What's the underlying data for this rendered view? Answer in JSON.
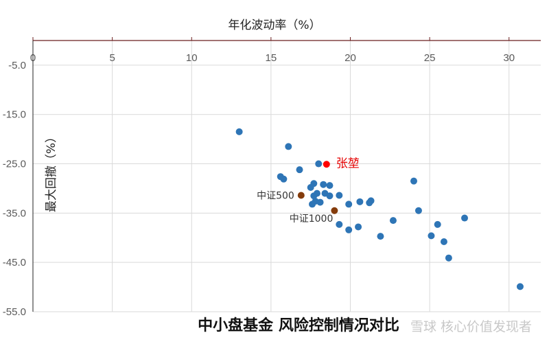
{
  "chart_data": {
    "type": "scatter",
    "title": "中小盘基金  风险控制情况对比",
    "xlabel": "年化波动率（%）",
    "ylabel": "最大回撤（%）",
    "xlim": [
      0,
      32
    ],
    "ylim": [
      -55,
      0
    ],
    "x_axis_position": "top",
    "x_ticks": [
      0,
      5,
      10,
      15,
      20,
      25,
      30
    ],
    "y_ticks": [
      -5.0,
      -15.0,
      -25.0,
      -35.0,
      -45.0,
      -55.0
    ],
    "grid": true,
    "colors": {
      "fund": "#2e75b6",
      "index": "#843c0c",
      "highlight": "#ff0000",
      "axis": "#6b1f1f",
      "grid": "#d9d9d9"
    },
    "series": [
      {
        "role": "fund",
        "points": [
          {
            "x": 13.0,
            "y": -18.5
          },
          {
            "x": 16.1,
            "y": -21.5
          },
          {
            "x": 18.0,
            "y": -25.0
          },
          {
            "x": 16.8,
            "y": -26.2
          },
          {
            "x": 15.6,
            "y": -27.6
          },
          {
            "x": 15.8,
            "y": -28.1
          },
          {
            "x": 17.7,
            "y": -29.0
          },
          {
            "x": 18.3,
            "y": -29.2
          },
          {
            "x": 18.7,
            "y": -29.4
          },
          {
            "x": 17.5,
            "y": -29.8
          },
          {
            "x": 17.9,
            "y": -31.0
          },
          {
            "x": 18.4,
            "y": -31.0
          },
          {
            "x": 17.7,
            "y": -31.5
          },
          {
            "x": 18.7,
            "y": -31.5
          },
          {
            "x": 19.3,
            "y": -31.4
          },
          {
            "x": 17.8,
            "y": -32.6
          },
          {
            "x": 18.1,
            "y": -32.8
          },
          {
            "x": 17.6,
            "y": -33.2
          },
          {
            "x": 20.6,
            "y": -32.7
          },
          {
            "x": 21.3,
            "y": -32.5
          },
          {
            "x": 21.2,
            "y": -32.9
          },
          {
            "x": 19.9,
            "y": -33.2
          },
          {
            "x": 24.0,
            "y": -28.5
          },
          {
            "x": 24.3,
            "y": -34.5
          },
          {
            "x": 22.7,
            "y": -36.5
          },
          {
            "x": 27.2,
            "y": -36.0
          },
          {
            "x": 25.5,
            "y": -37.3
          },
          {
            "x": 19.3,
            "y": -37.3
          },
          {
            "x": 20.5,
            "y": -37.8
          },
          {
            "x": 19.9,
            "y": -38.4
          },
          {
            "x": 21.9,
            "y": -39.7
          },
          {
            "x": 25.1,
            "y": -39.6
          },
          {
            "x": 25.9,
            "y": -40.8
          },
          {
            "x": 26.2,
            "y": -44.1
          },
          {
            "x": 30.7,
            "y": -49.9
          }
        ]
      },
      {
        "role": "index",
        "points": [
          {
            "x": 16.9,
            "y": -31.4,
            "label": "中证500"
          },
          {
            "x": 19.0,
            "y": -34.5,
            "label": "中证1000"
          }
        ]
      },
      {
        "role": "highlight",
        "points": [
          {
            "x": 18.5,
            "y": -25.1,
            "label": "张堃"
          }
        ]
      }
    ]
  },
  "watermark": "雪球  核心价值发现者"
}
